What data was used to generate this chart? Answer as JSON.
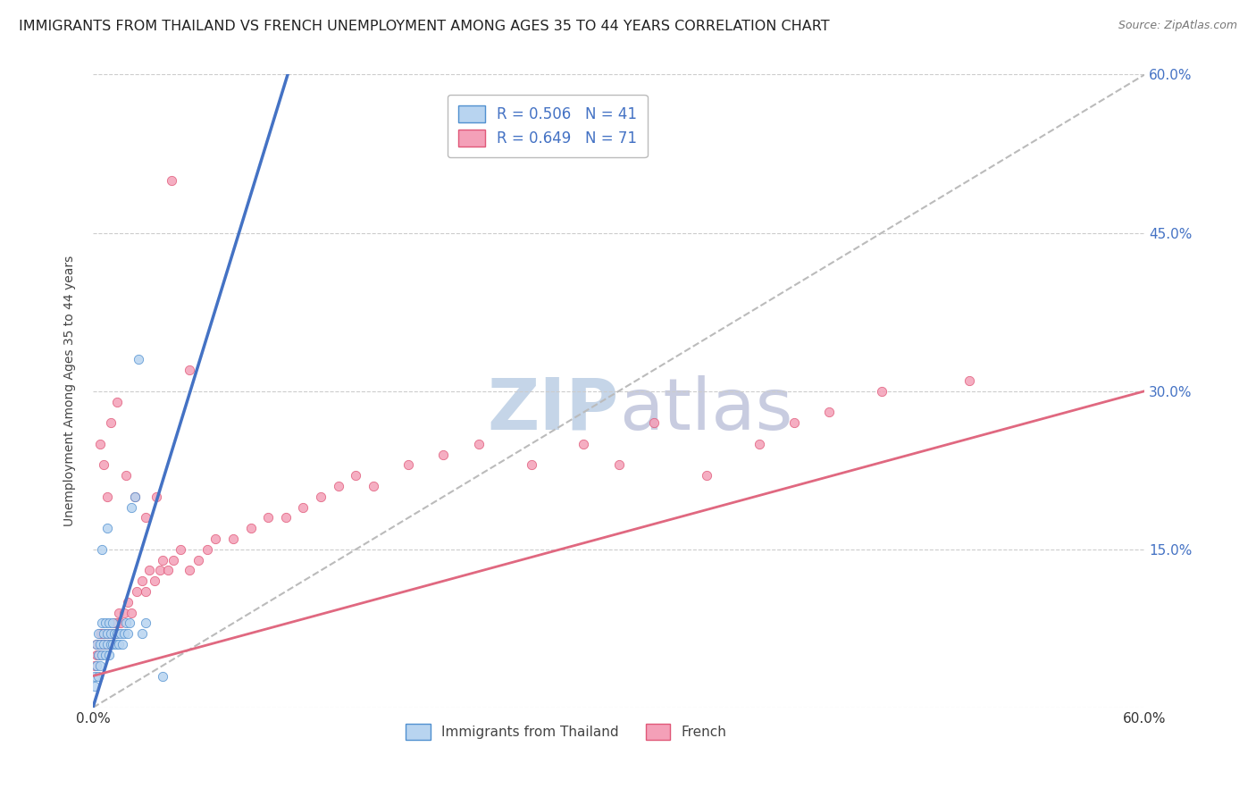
{
  "title": "IMMIGRANTS FROM THAILAND VS FRENCH UNEMPLOYMENT AMONG AGES 35 TO 44 YEARS CORRELATION CHART",
  "source": "Source: ZipAtlas.com",
  "ylabel": "Unemployment Among Ages 35 to 44 years",
  "xlim": [
    0.0,
    0.6
  ],
  "ylim": [
    0.0,
    0.6
  ],
  "xticks": [
    0.0,
    0.6
  ],
  "xtick_labels": [
    "0.0%",
    "60.0%"
  ],
  "yticks_right": [
    0.15,
    0.3,
    0.45,
    0.6
  ],
  "ytick_labels_right": [
    "15.0%",
    "30.0%",
    "45.0%",
    "60.0%"
  ],
  "legend_entries": [
    {
      "label": "R = 0.506   N = 41",
      "color": "#a8c8f0"
    },
    {
      "label": "R = 0.649   N = 71",
      "color": "#f080a0"
    }
  ],
  "bottom_legend": [
    "Immigrants from Thailand",
    "French"
  ],
  "watermark_zip": "ZIP",
  "watermark_atlas": "atlas",
  "watermark_color": "#c8d8ee",
  "grid_color": "#cccccc",
  "grid_style": "--",
  "background_color": "#ffffff",
  "title_fontsize": 11.5,
  "right_tick_color": "#4472c4",
  "thailand_scatter_color": "#b8d4f0",
  "thailand_scatter_edge": "#5090d0",
  "thailand_line_color": "#4472c4",
  "french_scatter_color": "#f4a0b8",
  "french_scatter_edge": "#e05878",
  "french_line_color": "#e06880",
  "diagonal_color": "#bbbbbb",
  "thailand_x": [
    0.001,
    0.002,
    0.002,
    0.003,
    0.003,
    0.004,
    0.004,
    0.005,
    0.005,
    0.006,
    0.006,
    0.007,
    0.007,
    0.008,
    0.008,
    0.009,
    0.009,
    0.01,
    0.01,
    0.011,
    0.011,
    0.012,
    0.013,
    0.014,
    0.015,
    0.016,
    0.017,
    0.018,
    0.019,
    0.02,
    0.021,
    0.022,
    0.024,
    0.026,
    0.028,
    0.03,
    0.001,
    0.003,
    0.005,
    0.008,
    0.04
  ],
  "thailand_y": [
    0.03,
    0.04,
    0.06,
    0.05,
    0.07,
    0.04,
    0.06,
    0.05,
    0.08,
    0.06,
    0.07,
    0.05,
    0.08,
    0.06,
    0.07,
    0.05,
    0.08,
    0.06,
    0.07,
    0.08,
    0.06,
    0.07,
    0.06,
    0.07,
    0.06,
    0.07,
    0.06,
    0.07,
    0.08,
    0.07,
    0.08,
    0.19,
    0.2,
    0.33,
    0.07,
    0.08,
    0.02,
    0.03,
    0.15,
    0.17,
    0.03
  ],
  "french_x": [
    0.001,
    0.002,
    0.002,
    0.003,
    0.003,
    0.004,
    0.004,
    0.005,
    0.005,
    0.006,
    0.006,
    0.007,
    0.008,
    0.009,
    0.01,
    0.011,
    0.012,
    0.013,
    0.014,
    0.015,
    0.016,
    0.018,
    0.02,
    0.022,
    0.025,
    0.028,
    0.03,
    0.032,
    0.035,
    0.038,
    0.04,
    0.043,
    0.046,
    0.05,
    0.055,
    0.06,
    0.065,
    0.07,
    0.08,
    0.09,
    0.1,
    0.11,
    0.12,
    0.13,
    0.14,
    0.15,
    0.16,
    0.18,
    0.2,
    0.22,
    0.25,
    0.28,
    0.3,
    0.32,
    0.35,
    0.38,
    0.4,
    0.42,
    0.45,
    0.5,
    0.004,
    0.006,
    0.008,
    0.01,
    0.014,
    0.019,
    0.024,
    0.03,
    0.036,
    0.045,
    0.055
  ],
  "french_y": [
    0.04,
    0.05,
    0.06,
    0.05,
    0.06,
    0.05,
    0.07,
    0.06,
    0.07,
    0.06,
    0.07,
    0.06,
    0.07,
    0.06,
    0.07,
    0.07,
    0.08,
    0.07,
    0.08,
    0.09,
    0.08,
    0.09,
    0.1,
    0.09,
    0.11,
    0.12,
    0.11,
    0.13,
    0.12,
    0.13,
    0.14,
    0.13,
    0.14,
    0.15,
    0.13,
    0.14,
    0.15,
    0.16,
    0.16,
    0.17,
    0.18,
    0.18,
    0.19,
    0.2,
    0.21,
    0.22,
    0.21,
    0.23,
    0.24,
    0.25,
    0.23,
    0.25,
    0.23,
    0.27,
    0.22,
    0.25,
    0.27,
    0.28,
    0.3,
    0.31,
    0.25,
    0.23,
    0.2,
    0.27,
    0.29,
    0.22,
    0.2,
    0.18,
    0.2,
    0.5,
    0.32
  ]
}
